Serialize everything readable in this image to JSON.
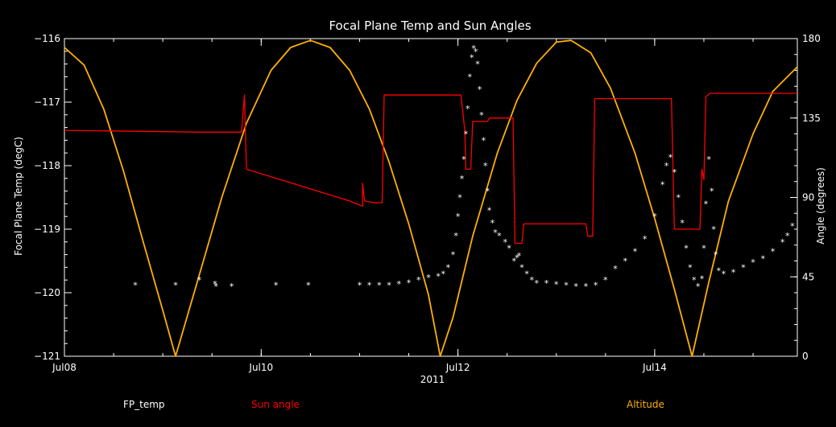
{
  "chart_data": {
    "type": "line",
    "title": "Focal Plane Temp and Sun Angles",
    "xlabel": "2011",
    "ylabel_left": "Focal Plane Temp (degC)",
    "ylabel_right": "Angle (degrees)",
    "x_unit": "days (July 2011)",
    "xlim": [
      8,
      15.45
    ],
    "ylim_left": [
      -121,
      -116
    ],
    "ylim_right": [
      0,
      180
    ],
    "x_ticks": [
      {
        "value": 8,
        "label": "Jul08"
      },
      {
        "value": 10,
        "label": "Jul10"
      },
      {
        "value": 12,
        "label": "Jul12"
      },
      {
        "value": 14,
        "label": "Jul14"
      }
    ],
    "y_ticks_left": [
      {
        "value": -116,
        "label": "−116"
      },
      {
        "value": -117,
        "label": "−117"
      },
      {
        "value": -118,
        "label": "−118"
      },
      {
        "value": -119,
        "label": "−119"
      },
      {
        "value": -120,
        "label": "−120"
      },
      {
        "value": -121,
        "label": "−121"
      }
    ],
    "y_ticks_right": [
      {
        "value": 180,
        "label": "180"
      },
      {
        "value": 135,
        "label": "135"
      },
      {
        "value": 90,
        "label": "90"
      },
      {
        "value": 45,
        "label": "45"
      },
      {
        "value": 0,
        "label": "0"
      }
    ],
    "legend": [
      "FP_temp",
      "Sun angle",
      "Altitude"
    ],
    "legend_placement": "bottom",
    "colors": {
      "fp_temp": "#ffffff",
      "sun_angle": "#ff0000",
      "altitude": "#ffb000",
      "axes": "#ffffff",
      "background": "#000000"
    },
    "series": [
      {
        "name": "FP_temp",
        "axis": "left",
        "style": "markers",
        "points": [
          [
            8.72,
            -119.88
          ],
          [
            9.13,
            -119.88
          ],
          [
            9.37,
            -119.8
          ],
          [
            9.53,
            -119.86
          ],
          [
            9.54,
            -119.9
          ],
          [
            9.7,
            -119.9
          ],
          [
            10.15,
            -119.88
          ],
          [
            10.48,
            -119.88
          ],
          [
            11.0,
            -119.88
          ],
          [
            11.1,
            -119.88
          ],
          [
            11.2,
            -119.88
          ],
          [
            11.3,
            -119.88
          ],
          [
            11.4,
            -119.86
          ],
          [
            11.5,
            -119.84
          ],
          [
            11.6,
            -119.8
          ],
          [
            11.7,
            -119.76
          ],
          [
            11.8,
            -119.74
          ],
          [
            11.85,
            -119.7
          ],
          [
            11.9,
            -119.6
          ],
          [
            11.95,
            -119.4
          ],
          [
            11.98,
            -119.1
          ],
          [
            12.0,
            -118.8
          ],
          [
            12.02,
            -118.5
          ],
          [
            12.04,
            -118.2
          ],
          [
            12.06,
            -117.9
          ],
          [
            12.08,
            -117.5
          ],
          [
            12.1,
            -117.1
          ],
          [
            12.12,
            -116.6
          ],
          [
            12.14,
            -116.3
          ],
          [
            12.16,
            -116.15
          ],
          [
            12.18,
            -116.2
          ],
          [
            12.2,
            -116.4
          ],
          [
            12.22,
            -116.8
          ],
          [
            12.24,
            -117.2
          ],
          [
            12.26,
            -117.6
          ],
          [
            12.28,
            -118.0
          ],
          [
            12.3,
            -118.4
          ],
          [
            12.32,
            -118.7
          ],
          [
            12.35,
            -118.9
          ],
          [
            12.38,
            -119.05
          ],
          [
            12.42,
            -119.1
          ],
          [
            12.48,
            -119.2
          ],
          [
            12.52,
            -119.3
          ],
          [
            12.57,
            -119.5
          ],
          [
            12.6,
            -119.45
          ],
          [
            12.62,
            -119.42
          ],
          [
            12.65,
            -119.6
          ],
          [
            12.7,
            -119.7
          ],
          [
            12.75,
            -119.8
          ],
          [
            12.8,
            -119.85
          ],
          [
            12.9,
            -119.85
          ],
          [
            13.0,
            -119.87
          ],
          [
            13.1,
            -119.88
          ],
          [
            13.2,
            -119.9
          ],
          [
            13.3,
            -119.9
          ],
          [
            13.4,
            -119.88
          ],
          [
            13.5,
            -119.8
          ],
          [
            13.6,
            -119.62
          ],
          [
            13.7,
            -119.5
          ],
          [
            13.8,
            -119.35
          ],
          [
            13.9,
            -119.15
          ],
          [
            14.0,
            -118.8
          ],
          [
            14.08,
            -118.3
          ],
          [
            14.12,
            -118.0
          ],
          [
            14.16,
            -117.87
          ],
          [
            14.2,
            -118.1
          ],
          [
            14.24,
            -118.5
          ],
          [
            14.28,
            -118.9
          ],
          [
            14.32,
            -119.3
          ],
          [
            14.36,
            -119.6
          ],
          [
            14.4,
            -119.8
          ],
          [
            14.44,
            -119.9
          ],
          [
            14.48,
            -119.78
          ],
          [
            14.5,
            -119.3
          ],
          [
            14.52,
            -118.6
          ],
          [
            14.55,
            -117.9
          ],
          [
            14.58,
            -118.4
          ],
          [
            14.6,
            -119.0
          ],
          [
            14.62,
            -119.4
          ],
          [
            14.65,
            -119.65
          ],
          [
            14.7,
            -119.7
          ],
          [
            14.8,
            -119.68
          ],
          [
            14.9,
            -119.6
          ],
          [
            15.0,
            -119.52
          ],
          [
            15.1,
            -119.46
          ],
          [
            15.2,
            -119.35
          ],
          [
            15.3,
            -119.2
          ],
          [
            15.35,
            -119.1
          ],
          [
            15.4,
            -118.95
          ]
        ]
      },
      {
        "name": "Sun angle",
        "axis": "right",
        "style": "line",
        "points": [
          [
            8.0,
            128
          ],
          [
            9.4,
            127
          ],
          [
            9.8,
            127
          ],
          [
            9.83,
            148
          ],
          [
            9.85,
            106
          ],
          [
            10.9,
            88
          ],
          [
            11.03,
            85
          ],
          [
            11.03,
            98
          ],
          [
            11.05,
            88
          ],
          [
            11.15,
            87
          ],
          [
            11.23,
            87
          ],
          [
            11.25,
            148
          ],
          [
            12.03,
            148
          ],
          [
            12.07,
            128
          ],
          [
            12.08,
            106
          ],
          [
            12.13,
            106
          ],
          [
            12.15,
            133
          ],
          [
            12.3,
            133
          ],
          [
            12.32,
            135
          ],
          [
            12.56,
            135
          ],
          [
            12.58,
            64
          ],
          [
            12.65,
            64
          ],
          [
            12.67,
            75
          ],
          [
            13.3,
            75
          ],
          [
            13.32,
            68
          ],
          [
            13.37,
            68
          ],
          [
            13.39,
            146
          ],
          [
            14.17,
            146
          ],
          [
            14.2,
            72
          ],
          [
            14.46,
            72
          ],
          [
            14.48,
            106
          ],
          [
            14.5,
            100
          ],
          [
            14.52,
            147
          ],
          [
            14.56,
            149
          ],
          [
            15.45,
            149
          ]
        ]
      },
      {
        "name": "Altitude",
        "axis": "right",
        "style": "line",
        "points": [
          [
            8.0,
            175
          ],
          [
            8.2,
            165
          ],
          [
            8.4,
            140
          ],
          [
            8.6,
            105
          ],
          [
            8.8,
            65
          ],
          [
            9.0,
            26
          ],
          [
            9.13,
            0
          ],
          [
            9.35,
            42
          ],
          [
            9.6,
            90
          ],
          [
            9.85,
            132
          ],
          [
            10.1,
            162
          ],
          [
            10.3,
            175
          ],
          [
            10.5,
            179
          ],
          [
            10.7,
            175
          ],
          [
            10.9,
            162
          ],
          [
            11.1,
            140
          ],
          [
            11.3,
            110
          ],
          [
            11.5,
            75
          ],
          [
            11.7,
            35
          ],
          [
            11.82,
            0
          ],
          [
            11.95,
            22
          ],
          [
            12.15,
            68
          ],
          [
            12.4,
            115
          ],
          [
            12.6,
            145
          ],
          [
            12.8,
            166
          ],
          [
            13.0,
            178
          ],
          [
            13.15,
            179
          ],
          [
            13.35,
            172
          ],
          [
            13.55,
            152
          ],
          [
            13.8,
            115
          ],
          [
            14.0,
            78
          ],
          [
            14.2,
            38
          ],
          [
            14.38,
            0
          ],
          [
            14.55,
            42
          ],
          [
            14.75,
            88
          ],
          [
            15.0,
            126
          ],
          [
            15.2,
            150
          ],
          [
            15.45,
            164
          ]
        ]
      }
    ]
  }
}
